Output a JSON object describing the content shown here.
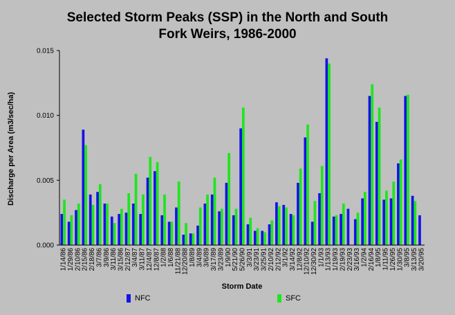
{
  "colors": {
    "background": "#c0c0c0",
    "NFC": "#1414e6",
    "SFC": "#1ee61e"
  },
  "chart_data": {
    "type": "bar",
    "title_lines": [
      "Selected Storm Peaks (SSP) in the North and South",
      "Fork Weirs, 1986-2000"
    ],
    "xlabel": "Storm Date",
    "ylabel": "Discharge per Area (m3/sec/ha)",
    "ylim": [
      0,
      0.015
    ],
    "yticks": [
      "0.000",
      "0.005",
      "0.010",
      "0.015"
    ],
    "grid": false,
    "legend_position": "bottom",
    "categories": [
      "1/14/86",
      "1/29/86",
      "2/10/86",
      "2/15/86",
      "2/18/86",
      "3/7/86",
      "3/9/86",
      "3/11/86",
      "3/15/86",
      "2/12/87",
      "3/4/87",
      "3/11/87",
      "12/4/87",
      "12/8/87",
      "1/2/88",
      "1/6/88",
      "11/21/88",
      "12/20/88",
      "1/8/89",
      "3/4/89",
      "3/6/89",
      "3/17/89",
      "3/23/89",
      "1/9/90",
      "5/21/90",
      "5/26/90",
      "3/3/91",
      "3/23/91",
      "3/25/91",
      "2/10/92",
      "2/12/92",
      "3/1/92",
      "3/14/92",
      "12/8/92",
      "12/10/92",
      "12/30/92",
      "1/1/93",
      "1/13/93",
      "1/19/93",
      "2/19/93",
      "2/23/93",
      "3/16/93",
      "1/2/94",
      "2/16/94",
      "1/8/95",
      "1/11/95",
      "1/26/95",
      "1/30/95",
      "3/8/95",
      "3/13/95",
      "3/20/95"
    ],
    "series": [
      {
        "name": "NFC",
        "values": [
          0.0024,
          0.0018,
          0.0027,
          0.0089,
          0.0039,
          0.0041,
          0.0032,
          0.0022,
          0.0024,
          0.0025,
          0.0032,
          0.0024,
          0.0052,
          0.0057,
          0.0023,
          0.0018,
          0.0029,
          0.0008,
          0.0009,
          0.0015,
          0.0032,
          0.0039,
          0.0026,
          0.0048,
          0.0023,
          0.009,
          0.0016,
          0.0011,
          0.0011,
          0.0016,
          0.0033,
          0.0031,
          0.0024,
          0.0048,
          0.0083,
          0.0018,
          0.004,
          0.0144,
          0.0022,
          0.0024,
          0.0028,
          0.002,
          0.0036,
          0.0115,
          0.0095,
          0.0035,
          0.0036,
          0.0063,
          0.0115,
          0.0038,
          0.0023
        ]
      },
      {
        "name": "SFC",
        "values": [
          0.0035,
          0.0023,
          0.0032,
          0.0077,
          0.0031,
          0.0047,
          0.0032,
          0.0017,
          0.0028,
          0.004,
          0.0055,
          0.0039,
          0.0068,
          0.0064,
          0.0039,
          0.0018,
          0.0049,
          0.0017,
          0.0009,
          0.0029,
          0.0039,
          0.0052,
          0.0028,
          0.0071,
          0.0028,
          0.0106,
          0.0021,
          0.0013,
          0.001,
          0.0019,
          0.003,
          0.0029,
          0.0023,
          0.0059,
          0.0093,
          0.0034,
          0.0061,
          0.014,
          0.0023,
          0.0032,
          0.0,
          0.0025,
          0.0041,
          0.0124,
          0.0106,
          0.0042,
          0.0049,
          0.0066,
          0.0116,
          0.0034,
          0.0
        ]
      }
    ]
  }
}
